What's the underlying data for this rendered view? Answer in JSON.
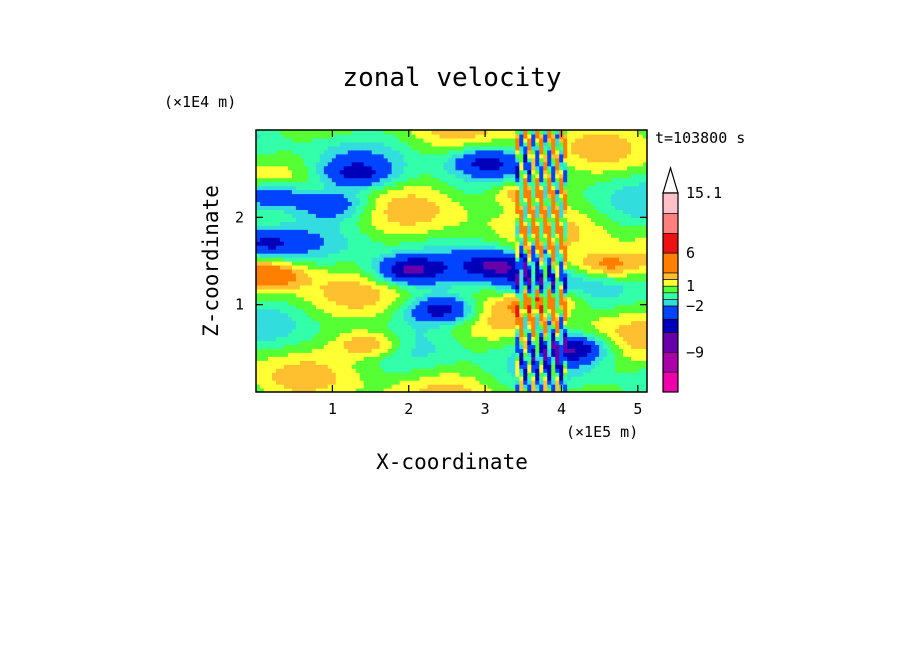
{
  "chart_data": {
    "type": "heatmap",
    "title": "zonal velocity",
    "xlabel": "X-coordinate",
    "ylabel": "Z-coordinate",
    "x_unit": "(×1E5 m)",
    "y_unit": "(×1E4 m)",
    "time_label": "t=103800 s",
    "xlim": [
      0,
      5.12
    ],
    "ylim": [
      0,
      3.0
    ],
    "x_ticks": [
      1,
      2,
      3,
      4,
      5
    ],
    "y_ticks": [
      1,
      2
    ],
    "x_tick_labels": [
      "1",
      "2",
      "3",
      "4",
      "5"
    ],
    "y_tick_labels": [
      "1",
      "2"
    ],
    "colorbar": {
      "labeled_levels": [
        "15.1",
        "6",
        "1",
        "−2",
        "−9"
      ],
      "levels": [
        15.1,
        12,
        9,
        6,
        3,
        2,
        1,
        0,
        -1,
        -2,
        -4,
        -6,
        -9,
        -12,
        -15
      ],
      "colors": [
        "#ffc0c8",
        "#ff7f7f",
        "#ee1111",
        "#ff7f00",
        "#ffc030",
        "#ffff33",
        "#55ff33",
        "#33ffaa",
        "#33dddd",
        "#0044ff",
        "#0000bb",
        "#6600aa",
        "#aa00aa",
        "#ee00aa"
      ]
    },
    "features": [
      {
        "type": "negative",
        "x": 0.2,
        "z": 2.25,
        "value": -6
      },
      {
        "type": "negative",
        "x": 0.1,
        "z": 1.7,
        "value": -4
      },
      {
        "type": "negative",
        "x": 1.0,
        "z": 2.15,
        "value": -4
      },
      {
        "type": "negative",
        "x": 1.3,
        "z": 2.5,
        "value": -4
      },
      {
        "type": "negative",
        "x": 2.0,
        "z": 1.4,
        "value": -6
      },
      {
        "type": "negative",
        "x": 3.2,
        "z": 1.45,
        "value": -6
      },
      {
        "type": "negative",
        "x": 3.65,
        "z": 1.2,
        "value": -6
      },
      {
        "type": "negative",
        "x": 2.45,
        "z": 0.95,
        "value": -6
      },
      {
        "type": "negative",
        "x": 4.15,
        "z": 0.5,
        "value": -6
      },
      {
        "type": "negative",
        "x": 3.0,
        "z": 2.65,
        "value": -4
      },
      {
        "type": "positive",
        "x": 0.2,
        "z": 1.35,
        "value": 4
      },
      {
        "type": "positive",
        "x": 1.5,
        "z": 0.55,
        "value": 4
      },
      {
        "type": "positive",
        "x": 3.75,
        "z": 1.1,
        "value": 6
      },
      {
        "type": "positive",
        "x": 4.6,
        "z": 1.45,
        "value": 4
      },
      {
        "type": "positive",
        "x": 3.5,
        "z": 2.3,
        "value": 4
      }
    ]
  }
}
